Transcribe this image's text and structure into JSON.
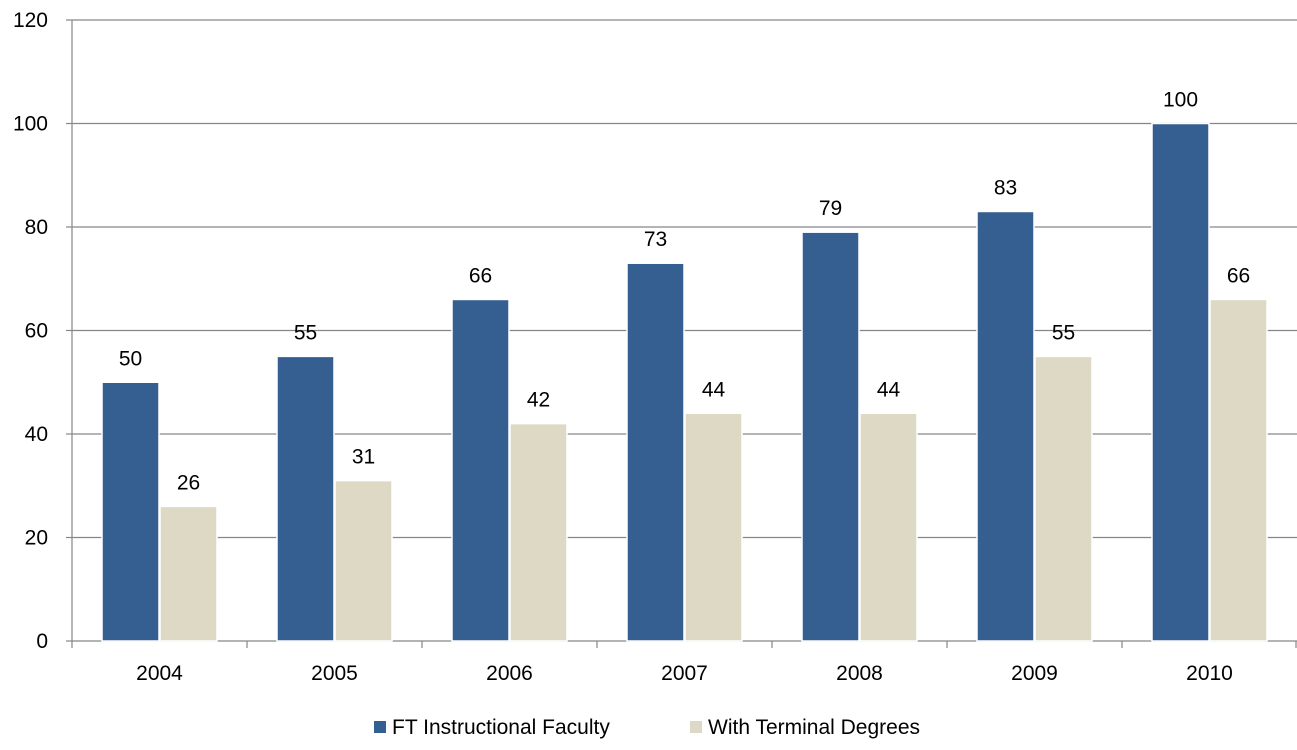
{
  "chart_data": {
    "type": "bar",
    "categories": [
      "2004",
      "2005",
      "2006",
      "2007",
      "2008",
      "2009",
      "2010"
    ],
    "series": [
      {
        "name": "FT Instructional Faculty",
        "values": [
          50,
          55,
          66,
          73,
          79,
          83,
          100
        ],
        "color": "#365F91"
      },
      {
        "name": "With Terminal Degrees",
        "values": [
          26,
          31,
          42,
          44,
          44,
          55,
          66
        ],
        "color": "#DDD9C4"
      }
    ],
    "title": "",
    "xlabel": "",
    "ylabel": "",
    "ylim": [
      0,
      120
    ],
    "yticks": [
      0,
      20,
      40,
      60,
      80,
      100,
      120
    ],
    "grid": true,
    "data_labels": true,
    "legend_position": "bottom"
  }
}
